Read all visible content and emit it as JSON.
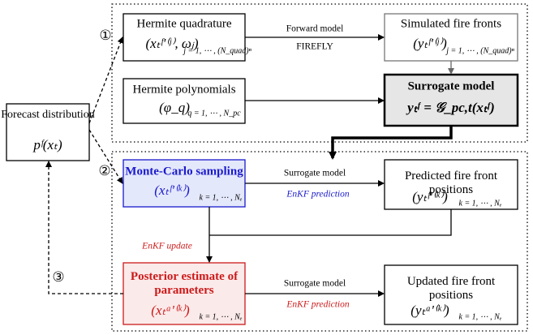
{
  "forecast": {
    "title": "Forecast distribution",
    "formula": "pᶠ(xₜ)"
  },
  "nodes": [
    {
      "title": "Hermite quadrature",
      "formula": "(xₜᶠ'⁽ʲ⁾, ωⱼ)",
      "index": "j = 1, ⋯ , (N_quad)ⁿ"
    },
    {
      "title": "Simulated fire fronts",
      "formula": "(yₜᶠ'⁽ʲ⁾)",
      "index": "j = 1, ⋯ , (N_quad)ⁿ"
    },
    {
      "title": "Hermite polynomials",
      "formula": "(φ_q)",
      "index": "q = 1, ⋯ , N_pc"
    },
    {
      "title": "Surrogate model",
      "formula": "yₜᶠ = 𝒢_pc,t(xₜᶠ)"
    },
    {
      "title": "Monte-Carlo sampling",
      "formula": "(xₜᶠ'⁽ᵏ⁾)",
      "index": "k = 1, ⋯ , Nₑ"
    },
    {
      "title": "Predicted fire front positions",
      "formula": "(yₜᶠ'⁽ᵏ⁾)",
      "index": "k = 1, ⋯ , Nₑ"
    },
    {
      "title": "Posterior estimate of parameters",
      "formula": "(xₜᵃ'⁽ᵏ⁾)",
      "index": "k = 1, ⋯ , Nₑ"
    },
    {
      "title": "Updated fire front positions",
      "formula": "(yₜᵃ'⁽ᵏ⁾)",
      "index": "k = 1, ⋯ , Nₑ"
    }
  ],
  "edges": {
    "forward_model": "Forward model",
    "firefly": "FIREFLY",
    "surrogate_1": "Surrogate model",
    "prediction_1": "EnKF prediction",
    "update": "EnKF update",
    "surrogate_2": "Surrogate model",
    "prediction_2": "EnKF prediction"
  },
  "steps": [
    "①",
    "②",
    "③"
  ]
}
